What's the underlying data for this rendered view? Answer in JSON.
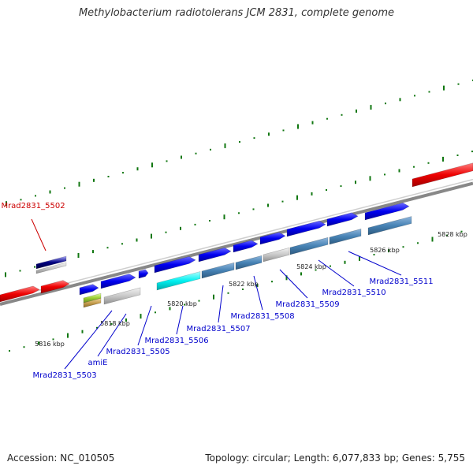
{
  "title": "Methylobacterium radiotolerans JCM 2831, complete genome",
  "footer": {
    "accession_label": "Accession:",
    "accession": "NC_010505",
    "topology_label": "Topology:",
    "topology": "circular",
    "length_label": "Length:",
    "length": "6,077,833 bp",
    "genes_label": "Genes:",
    "genes": "5,755"
  },
  "colors": {
    "plus_strand_cds": "#0000ff",
    "highlight_gene": "#ff0000",
    "minus_strand_selected": "#00ffff",
    "minus_strand_neighbor": "#4682b4",
    "unannotated": "#c8c8c8",
    "kmer_tick": "#117711",
    "backbone": "#888888",
    "label_blue": "#0000cc",
    "label_red": "#cc0000"
  },
  "scale_labels": [
    "5816 kbp",
    "5818 kbp",
    "5820 kbp",
    "5822 kbp",
    "5824 kbp",
    "5826 kbp",
    "5828 kbp"
  ],
  "gene_labels": {
    "mrad5502": "Mrad2831_5502",
    "mrad5503": "Mrad2831_5503",
    "amie": "amiE",
    "mrad5505": "Mrad2831_5505",
    "mrad5506": "Mrad2831_5506",
    "mrad5507": "Mrad2831_5507",
    "mrad5508": "Mrad2831_5508",
    "mrad5509": "Mrad2831_5509",
    "mrad5510": "Mrad2831_5510",
    "mrad5511": "Mrad2831_5511"
  }
}
